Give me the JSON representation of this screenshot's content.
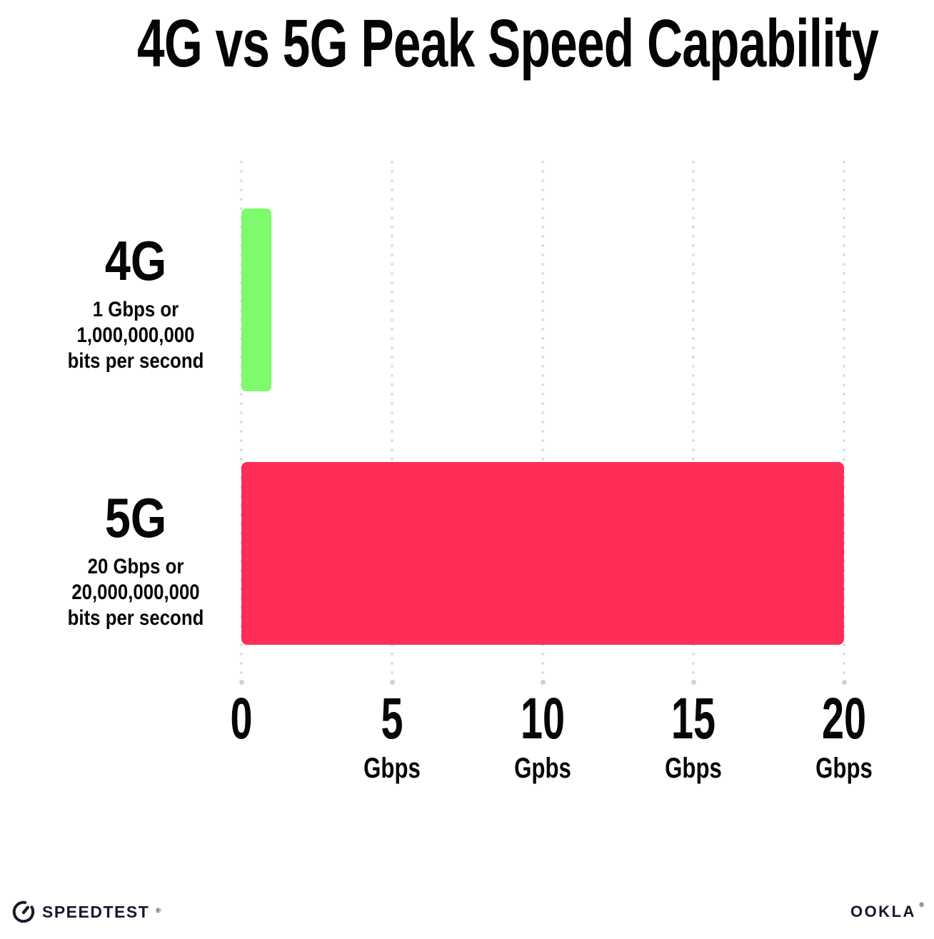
{
  "title": "4G vs 5G Peak Speed Capability",
  "chart_data": {
    "type": "bar",
    "orientation": "horizontal",
    "title": "4G vs 5G Peak Speed Capability",
    "categories": [
      "4G",
      "5G"
    ],
    "values": [
      1,
      20
    ],
    "value_unit": "Gbps",
    "xlim": [
      0,
      20
    ],
    "grid": "vertical-dotted",
    "legend": "none",
    "bar_colors": [
      "#7EFA6C",
      "#FF2E56"
    ],
    "row_labels": [
      {
        "name": "4G",
        "lines": [
          "1 Gbps or",
          "1,000,000,000",
          "bits per second"
        ]
      },
      {
        "name": "5G",
        "lines": [
          "20 Gbps or",
          "20,000,000,000",
          "bits per second"
        ]
      }
    ],
    "x_ticks": [
      {
        "value": 0,
        "label": "0",
        "unit": ""
      },
      {
        "value": 5,
        "label": "5",
        "unit": "Gbps"
      },
      {
        "value": 10,
        "label": "10",
        "unit": "Gpbs"
      },
      {
        "value": 15,
        "label": "15",
        "unit": "Gbps"
      },
      {
        "value": 20,
        "label": "20",
        "unit": "Gbps"
      }
    ]
  },
  "footer": {
    "speedtest_label": "SPEEDTEST",
    "speedtest_trademark": "®",
    "ookla_label": "OOKLA",
    "ookla_trademark": "®"
  },
  "colors": {
    "background": "#FFFFFF",
    "title_text": "#050506",
    "bar_4g": "#7EFA6C",
    "bar_5g": "#FF2E56",
    "gridline_dot": "#D8D8E4",
    "footer_text": "#17182B"
  }
}
